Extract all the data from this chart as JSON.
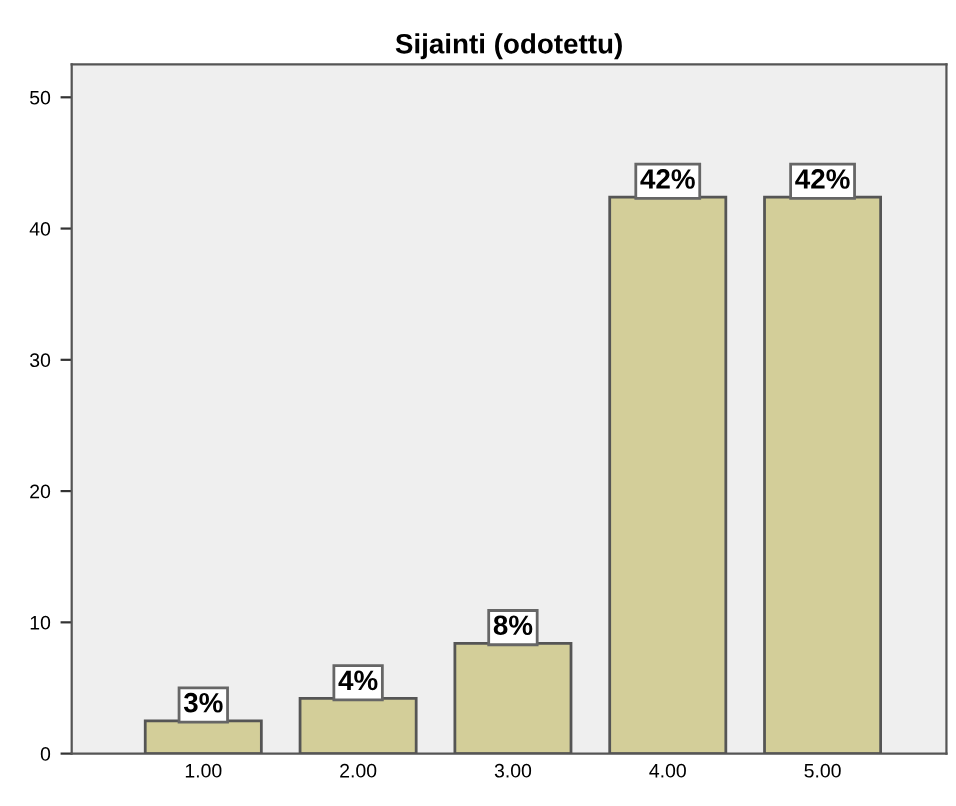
{
  "chart_data": {
    "type": "bar",
    "title": "Sijainti (odotettu)",
    "categories": [
      "1.00",
      "2.00",
      "3.00",
      "4.00",
      "5.00"
    ],
    "values": [
      2.5,
      4.2,
      8.4,
      42.4,
      42.4
    ],
    "value_labels": [
      "3%",
      "4%",
      "8%",
      "42%",
      "42%"
    ],
    "color": "#d3ce99",
    "ylim": [
      0,
      52.5
    ],
    "yticks": [
      0,
      10,
      20,
      30,
      40,
      50
    ],
    "grid": false
  }
}
